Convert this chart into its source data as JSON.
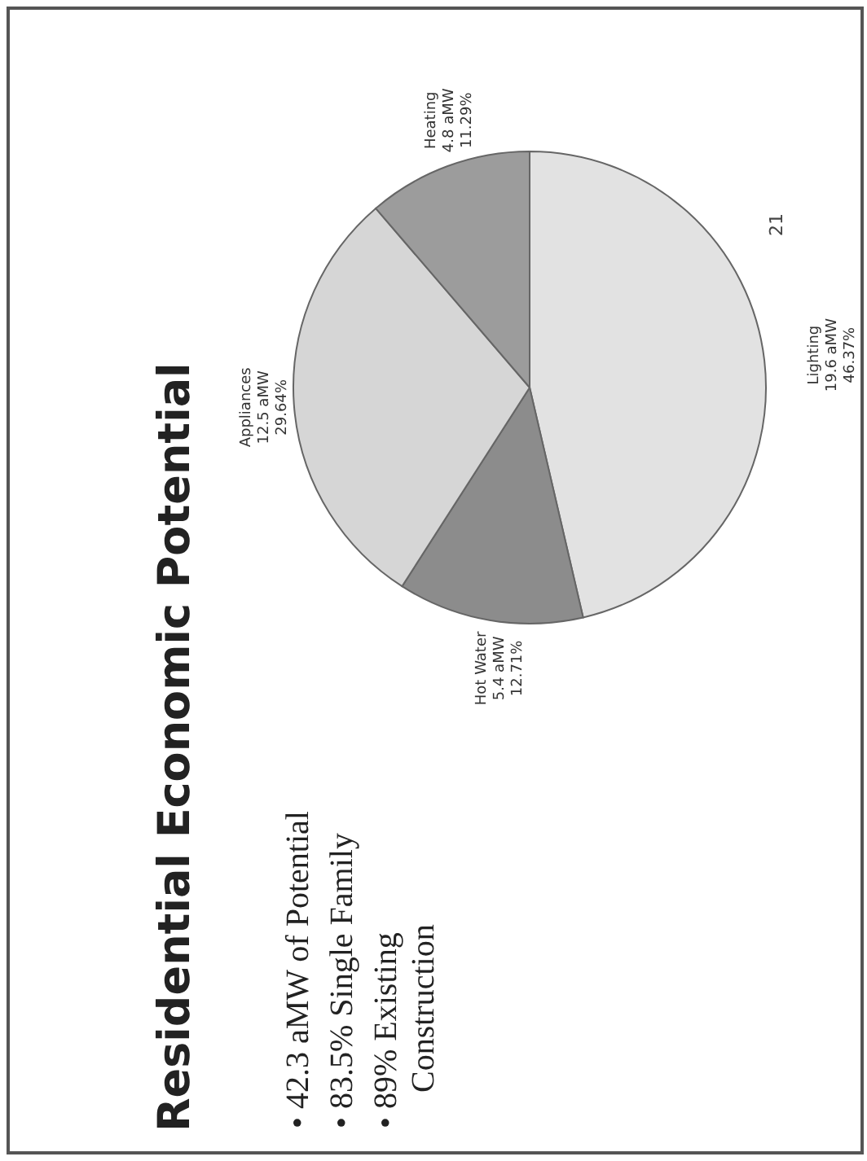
{
  "chart_data": {
    "type": "pie",
    "title": "Residential Economic Potential",
    "categories": [
      "Lighting",
      "Hot Water",
      "Appliances",
      "Heating"
    ],
    "values": [
      46.37,
      12.71,
      29.64,
      11.29
    ],
    "colors": [
      "#e2e2e2",
      "#8c8c8c",
      "#d6d6d6",
      "#9c9c9c"
    ],
    "value_labels": [
      "19.6 aMW\n46.37%",
      "5.4 aMW\n12.71%",
      "12.5 aMW\n29.64%",
      "4.8 aMW\n11.29%"
    ],
    "annotations": [
      "• 42.3 aMW of Potential",
      "• 83.5% Single Family",
      "• 89% Existing Construction",
      "21"
    ],
    "legend": false
  }
}
